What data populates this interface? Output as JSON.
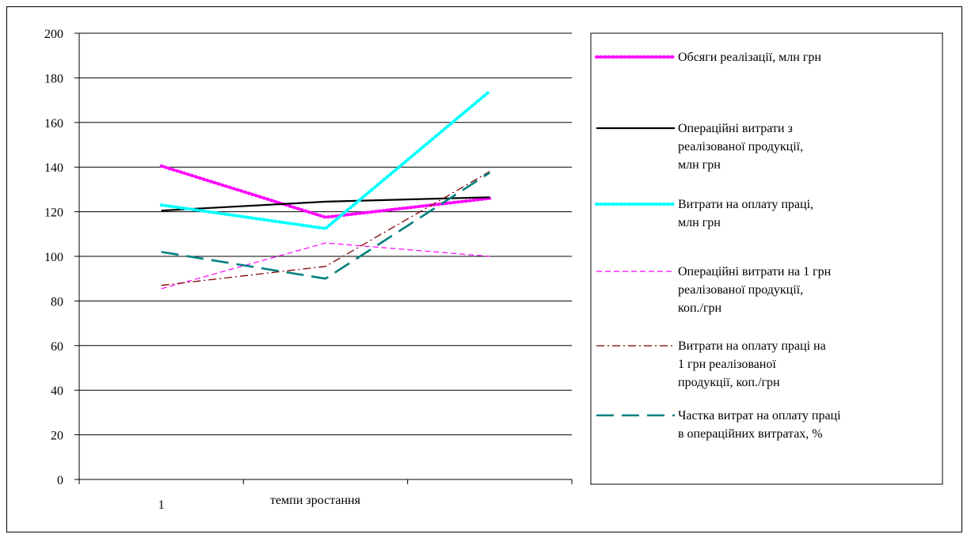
{
  "chart_data": {
    "type": "line",
    "title": "",
    "xlabel": "темпи зростання",
    "ylabel": "",
    "categories": [
      "1",
      "",
      ""
    ],
    "ylim": [
      0,
      200
    ],
    "yticks": [
      "0",
      "20",
      "40",
      "60",
      "80",
      "100",
      "120",
      "140",
      "160",
      "180",
      "200"
    ],
    "grid": true,
    "legend_position": "right",
    "series": [
      {
        "name": "Обсяги реалізації, млн грн",
        "name_lines": [
          "Обсяги реалізації, млн грн"
        ],
        "values": [
          140.5,
          117.5,
          126
        ],
        "color": "#ff00ff",
        "style": "dotted-thick"
      },
      {
        "name": "Операційні витрати з реалізованої продукції, млн грн",
        "name_lines": [
          "Операційні витрати з",
          "реалізованої продукції,",
          "млн грн"
        ],
        "values": [
          120.5,
          124.5,
          126.5
        ],
        "color": "#000000",
        "style": "solid"
      },
      {
        "name": "Витрати на оплату праці, млн грн",
        "name_lines": [
          "Витрати на оплату праці,",
          "млн грн"
        ],
        "values": [
          123,
          112.5,
          174
        ],
        "color": "#00ffff",
        "style": "dotted-thick"
      },
      {
        "name": "Операційні витрати на 1 грн реалізованої продукції, коп./грн",
        "name_lines": [
          "Операційні витрати на 1 грн",
          "реалізованої продукції,",
          "коп./грн"
        ],
        "values": [
          85.5,
          106,
          100
        ],
        "color": "#ff00ff",
        "style": "dashed-thin"
      },
      {
        "name": "Витрати на оплату праці на 1 грн реалізованої продукції, коп./грн",
        "name_lines": [
          "Витрати на оплату праці на",
          "1 грн реалізованої",
          "продукції, коп./грн"
        ],
        "values": [
          87,
          95.5,
          138
        ],
        "color": "#800000",
        "style": "dashdot"
      },
      {
        "name": "Частка витрат на оплату праці в операційних витратах, %",
        "name_lines": [
          "Частка витрат на оплату праці",
          "в операційних витратах, %"
        ],
        "values": [
          102,
          90,
          137.5
        ],
        "color": "#008080",
        "style": "dashed-thick"
      }
    ]
  }
}
